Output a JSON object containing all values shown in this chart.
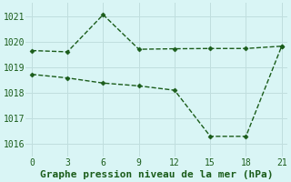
{
  "line1_x": [
    0,
    3,
    6,
    9,
    12,
    15,
    18,
    21
  ],
  "line1_y": [
    1019.65,
    1019.6,
    1021.05,
    1019.7,
    1019.72,
    1019.73,
    1019.73,
    1019.82
  ],
  "line2_x": [
    0,
    3,
    6,
    9,
    12,
    15,
    18,
    21
  ],
  "line2_y": [
    1018.72,
    1018.58,
    1018.38,
    1018.27,
    1018.1,
    1016.3,
    1016.3,
    1019.82
  ],
  "line_color": "#1a5c1a",
  "marker": "D",
  "marker_size": 2.5,
  "linewidth": 1.0,
  "xlabel": "Graphe pression niveau de la mer (hPa)",
  "xlabel_fontsize": 8,
  "xticks": [
    0,
    3,
    6,
    9,
    12,
    15,
    18,
    21
  ],
  "yticks": [
    1016,
    1017,
    1018,
    1019,
    1020,
    1021
  ],
  "xlim": [
    -0.5,
    21.5
  ],
  "ylim": [
    1015.5,
    1021.5
  ],
  "bg_color": "#d9f5f5",
  "grid_color": "#c0dede",
  "tick_fontsize": 7,
  "fig_width": 3.2,
  "fig_height": 2.0,
  "dpi": 100
}
